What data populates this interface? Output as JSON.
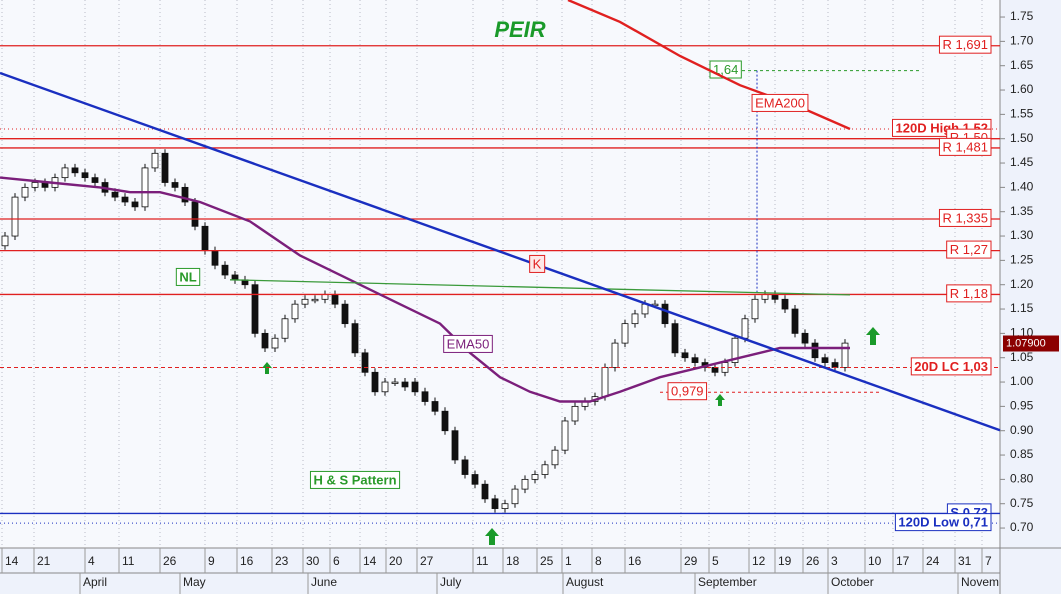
{
  "chart_data": {
    "type": "candlestick",
    "title": "PEIR",
    "xlim": [
      -0.5,
      99.5
    ],
    "ylim": [
      0.659,
      1.785
    ],
    "xticks": [
      {
        "value": -0.3,
        "label": "14"
      },
      {
        "value": 2.9,
        "label": "21"
      },
      {
        "value": 8,
        "label": "4"
      },
      {
        "value": 11.4,
        "label": "11"
      },
      {
        "value": 15.5,
        "label": "26"
      },
      {
        "value": 20,
        "label": "9"
      },
      {
        "value": 23.2,
        "label": "16"
      },
      {
        "value": 26.7,
        "label": "23"
      },
      {
        "value": 29.8,
        "label": "30"
      },
      {
        "value": 32.5,
        "label": "6"
      },
      {
        "value": 35.5,
        "label": "14"
      },
      {
        "value": 38.1,
        "label": "20"
      },
      {
        "value": 41.2,
        "label": "27"
      },
      {
        "value": 46.8,
        "label": "11"
      },
      {
        "value": 49.8,
        "label": "18"
      },
      {
        "value": 53.2,
        "label": "25"
      },
      {
        "value": 55.7,
        "label": "1"
      },
      {
        "value": 58.7,
        "label": "8"
      },
      {
        "value": 62,
        "label": "16"
      },
      {
        "value": 67.6,
        "label": "29"
      },
      {
        "value": 70.4,
        "label": "5"
      },
      {
        "value": 74.4,
        "label": "12"
      },
      {
        "value": 77,
        "label": "19"
      },
      {
        "value": 79.8,
        "label": "26"
      },
      {
        "value": 82.3,
        "label": "3"
      },
      {
        "value": 86,
        "label": "10"
      },
      {
        "value": 88.8,
        "label": "17"
      },
      {
        "value": 91.8,
        "label": "24"
      },
      {
        "value": 95,
        "label": "31"
      },
      {
        "value": 97.7,
        "label": "7"
      }
    ],
    "months": [
      {
        "value": 7.5,
        "label": "April"
      },
      {
        "value": 17.5,
        "label": "May"
      },
      {
        "value": 30.3,
        "label": "June"
      },
      {
        "value": 43.2,
        "label": "July"
      },
      {
        "value": 55.8,
        "label": "August"
      },
      {
        "value": 69,
        "label": "September"
      },
      {
        "value": 82.3,
        "label": "October"
      },
      {
        "value": 95.3,
        "label": "Novem"
      }
    ],
    "yticks": [
      1.75,
      {
        "value": 1.7,
        "label": "1.70"
      },
      1.65,
      {
        "value": 1.6,
        "label": "1.60"
      },
      1.55,
      {
        "value": 1.5,
        "label": "1.50"
      },
      1.45,
      {
        "value": 1.4,
        "label": "1.40"
      },
      1.35,
      {
        "value": 1.3,
        "label": "1.30"
      },
      1.25,
      {
        "value": 1.2,
        "label": "1.20"
      },
      1.15,
      {
        "value": 1.1,
        "label": "1.10"
      },
      1.05,
      {
        "value": 1.0,
        "label": "1.00"
      },
      0.95,
      {
        "value": 0.9,
        "label": "0.90"
      },
      0.85,
      {
        "value": 0.8,
        "label": "0.80"
      },
      0.75,
      {
        "value": 0.7,
        "label": "0.70"
      }
    ],
    "grid": "x",
    "opens": [
      1.28,
      1.3,
      1.38,
      1.4,
      1.41,
      1.4,
      1.42,
      1.44,
      1.43,
      1.42,
      1.41,
      1.39,
      1.38,
      1.37,
      1.36,
      1.44,
      1.47,
      1.41,
      1.4,
      1.37,
      1.32,
      1.27,
      1.24,
      1.22,
      1.21,
      1.2,
      1.1,
      1.07,
      1.09,
      1.13,
      1.16,
      1.17,
      1.17,
      1.18,
      1.16,
      1.12,
      1.06,
      1.02,
      0.98,
      1.0,
      1.0,
      1.0,
      0.98,
      0.96,
      0.94,
      0.9,
      0.84,
      0.81,
      0.79,
      0.76,
      0.74,
      0.75,
      0.78,
      0.8,
      0.81,
      0.83,
      0.86,
      0.92,
      0.95,
      0.96,
      0.97,
      1.03,
      1.08,
      1.12,
      1.14,
      1.16,
      1.16,
      1.12,
      1.06,
      1.05,
      1.04,
      1.03,
      1.02,
      1.04,
      1.09,
      1.13,
      1.17,
      1.18,
      1.17,
      1.15,
      1.1,
      1.08,
      1.05,
      1.04,
      1.03
    ],
    "closes": [
      1.3,
      1.38,
      1.4,
      1.41,
      1.4,
      1.42,
      1.44,
      1.43,
      1.42,
      1.41,
      1.39,
      1.38,
      1.37,
      1.36,
      1.44,
      1.47,
      1.41,
      1.4,
      1.37,
      1.32,
      1.27,
      1.24,
      1.22,
      1.21,
      1.2,
      1.1,
      1.07,
      1.09,
      1.13,
      1.16,
      1.17,
      1.17,
      1.18,
      1.16,
      1.12,
      1.06,
      1.02,
      0.98,
      1.0,
      1.0,
      0.99,
      0.98,
      0.96,
      0.94,
      0.9,
      0.84,
      0.81,
      0.79,
      0.76,
      0.74,
      0.75,
      0.78,
      0.8,
      0.81,
      0.83,
      0.86,
      0.92,
      0.95,
      0.96,
      0.97,
      1.03,
      1.08,
      1.12,
      1.14,
      1.16,
      1.16,
      1.12,
      1.06,
      1.05,
      1.04,
      1.03,
      1.02,
      1.04,
      1.09,
      1.13,
      1.17,
      1.18,
      1.17,
      1.15,
      1.1,
      1.08,
      1.05,
      1.04,
      1.03,
      1.08
    ],
    "lines": [
      {
        "name": "EMA50",
        "color": "#7b1f7b",
        "x": [
          -0.5,
          4.5,
          9.5,
          12.5,
          15.5,
          19.5,
          24.5,
          29.5,
          34.5,
          39.5,
          43.5,
          46.5,
          49.5,
          52.5,
          55.5,
          58.5,
          61.5,
          65.5,
          69.5,
          73.5,
          77.5,
          81.5,
          84.5
        ],
        "values": [
          1.42,
          1.41,
          1.4,
          1.39,
          1.39,
          1.37,
          1.33,
          1.26,
          1.21,
          1.16,
          1.12,
          1.06,
          1.01,
          0.98,
          0.96,
          0.96,
          0.98,
          1.01,
          1.03,
          1.05,
          1.07,
          1.07,
          1.07
        ]
      },
      {
        "name": "EMA200",
        "color": "#e02020",
        "x": [
          56.3,
          61.5,
          67.5,
          73.5,
          79.5,
          84.5
        ],
        "values": [
          1.785,
          1.74,
          1.67,
          1.61,
          1.565,
          1.52
        ]
      },
      {
        "name": "NL",
        "color": "#3a9a3a",
        "x": [
          22.5,
          84.5
        ],
        "values": [
          1.21,
          1.179
        ]
      },
      {
        "color": "#1a2fc0",
        "x": [
          -0.5,
          99.5
        ],
        "values": [
          1.635,
          0.901
        ]
      }
    ],
    "levels": [
      {
        "value": 1.691,
        "label": "R 1,691",
        "color": "#e02020",
        "style": "solid"
      },
      {
        "value": 1.52,
        "label": "120D High 1,52",
        "color": "#e02020",
        "style": "dotted"
      },
      {
        "value": 1.5,
        "label": "R 1,50",
        "color": "#e02020",
        "style": "solid"
      },
      {
        "value": 1.481,
        "label": "R 1,481",
        "color": "#e02020",
        "style": "solid"
      },
      {
        "value": 1.335,
        "label": "R 1,335",
        "color": "#e02020",
        "style": "solid"
      },
      {
        "value": 1.27,
        "label": "R 1,27",
        "color": "#e02020",
        "style": "solid"
      },
      {
        "value": 1.18,
        "label": "R 1,18",
        "color": "#e02020",
        "style": "solid"
      },
      {
        "value": 1.03,
        "label": "20D LC 1,03",
        "color": "#e02020",
        "style": "dashed"
      },
      {
        "value": 0.73,
        "label": "S 0,73",
        "color": "#1a2fc0",
        "style": "solid"
      },
      {
        "value": 0.71,
        "label": "120D Low 0,71",
        "color": "#1a2fc0",
        "style": "dotted"
      }
    ],
    "target": {
      "value": 1.64,
      "label": "1,64"
    },
    "neckline_low": {
      "value": 0.979,
      "label": "0,979"
    },
    "last_price": {
      "value": 1.079,
      "label": "1.07900"
    },
    "annotations": [
      "EMA200",
      "EMA50",
      "NL",
      "K",
      "H & S Pattern"
    ]
  }
}
